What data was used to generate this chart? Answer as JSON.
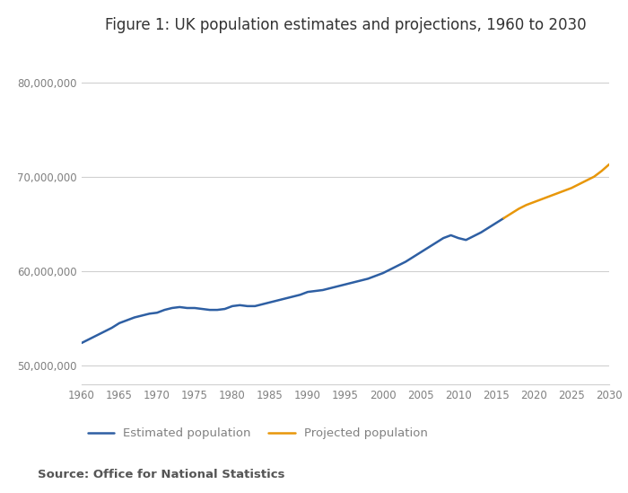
{
  "title": "Figure 1: UK population estimates and projections, 1960 to 2030",
  "source_text": "Source: Office for National Statistics",
  "estimated_years": [
    1960,
    1961,
    1962,
    1963,
    1964,
    1965,
    1966,
    1967,
    1968,
    1969,
    1970,
    1971,
    1972,
    1973,
    1974,
    1975,
    1976,
    1977,
    1978,
    1979,
    1980,
    1981,
    1982,
    1983,
    1984,
    1985,
    1986,
    1987,
    1988,
    1989,
    1990,
    1991,
    1992,
    1993,
    1994,
    1995,
    1996,
    1997,
    1998,
    1999,
    2000,
    2001,
    2002,
    2003,
    2004,
    2005,
    2006,
    2007,
    2008,
    2009,
    2010,
    2011,
    2012,
    2013,
    2014,
    2015,
    2016
  ],
  "estimated_values": [
    52400000,
    52800000,
    53200000,
    53600000,
    54000000,
    54500000,
    54800000,
    55100000,
    55300000,
    55500000,
    55600000,
    55900000,
    56100000,
    56200000,
    56100000,
    56100000,
    56000000,
    55900000,
    55900000,
    56000000,
    56300000,
    56400000,
    56300000,
    56300000,
    56500000,
    56700000,
    56900000,
    57100000,
    57300000,
    57500000,
    57800000,
    57900000,
    58000000,
    58200000,
    58400000,
    58600000,
    58800000,
    59000000,
    59200000,
    59500000,
    59800000,
    60200000,
    60600000,
    61000000,
    61500000,
    62000000,
    62500000,
    63000000,
    63500000,
    63800000,
    63500000,
    63300000,
    63700000,
    64100000,
    64600000,
    65100000,
    65600000
  ],
  "projected_years": [
    2016,
    2017,
    2018,
    2019,
    2020,
    2021,
    2022,
    2023,
    2024,
    2025,
    2026,
    2027,
    2028,
    2029,
    2030
  ],
  "projected_values": [
    65600000,
    66100000,
    66600000,
    67000000,
    67300000,
    67600000,
    67900000,
    68200000,
    68500000,
    68800000,
    69200000,
    69600000,
    70000000,
    70600000,
    71300000
  ],
  "estimated_color": "#2e5fa3",
  "projected_color": "#e8970a",
  "line_width": 1.8,
  "ylim": [
    48000000,
    84000000
  ],
  "xlim": [
    1960,
    2030
  ],
  "yticks": [
    50000000,
    60000000,
    70000000,
    80000000
  ],
  "xticks": [
    1960,
    1965,
    1970,
    1975,
    1980,
    1985,
    1990,
    1995,
    2000,
    2005,
    2010,
    2015,
    2020,
    2025,
    2030
  ],
  "legend_estimated": "Estimated population",
  "legend_projected": "Projected population",
  "bg_color": "#ffffff",
  "grid_color": "#d0d0d0",
  "tick_label_color": "#808080",
  "source_color": "#555555",
  "title_color": "#333333"
}
